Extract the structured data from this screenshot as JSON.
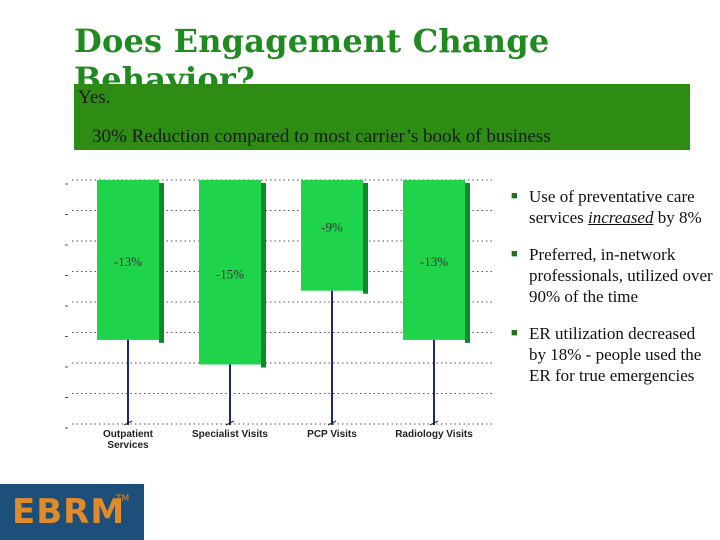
{
  "slide": {
    "title": "Does Engagement Change Behavior?",
    "banner_line1": "Yes.",
    "banner_line2": "30% Reduction compared to most carrier’s book of business"
  },
  "bullets": [
    {
      "pre": "Use of preventative care services ",
      "em": "increased",
      "post": " by 8%"
    },
    {
      "pre": "Preferred, in-network professionals, utilized over 90% of the time",
      "em": "",
      "post": ""
    },
    {
      "pre": "ER utilization decreased by 18% - people used the ER for true emergencies",
      "em": "",
      "post": ""
    }
  ],
  "logo": {
    "text": "EBRM",
    "mark": "TM"
  },
  "colors": {
    "bar": "#1fd44a",
    "bar_dark": "#0f8a2a",
    "banner": "#2e8b14",
    "title": "#1f8a1f",
    "logo_bg": "#1c4f7a",
    "logo_text": "#e08a2a"
  },
  "chart_data": {
    "type": "bar",
    "categories": [
      [
        "Outpatient",
        "Services"
      ],
      [
        "Specialist Visits"
      ],
      [
        "PCP Visits"
      ],
      [
        "Radiology Visits"
      ]
    ],
    "values": [
      -13,
      -15,
      -9,
      -13
    ],
    "data_labels": [
      "-13%",
      "-15%",
      "-9%",
      "-13%"
    ],
    "ylim": [
      -20,
      0
    ],
    "grid": true,
    "legend": "none"
  }
}
